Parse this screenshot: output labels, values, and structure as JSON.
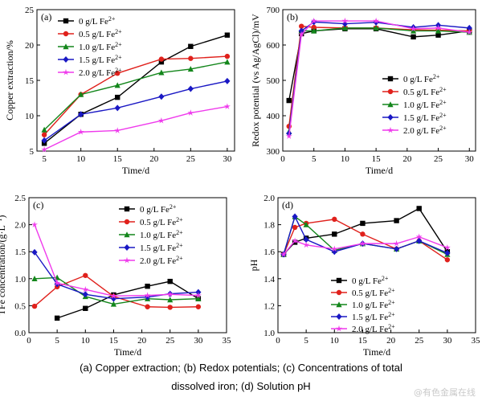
{
  "caption_line1": "(a) Copper extraction; (b) Redox potentials; (c) Concentrations of total",
  "caption_line2": "dissolved iron; (d) Solution pH",
  "watermark": "@有色金属在线",
  "colors": {
    "0 g/L": "#000000",
    "0.5 g/L": "#e0211c",
    "1.0 g/L": "#13861b",
    "1.5 g/L": "#1a18c4",
    "2.0 g/L": "#ef3aec"
  },
  "chart_data": [
    {
      "panel": "(a)",
      "type": "line",
      "xlabel": "Time/d",
      "ylabel": "Copper extraction/%",
      "xlim": [
        4,
        31
      ],
      "ylim": [
        5,
        25
      ],
      "xticks": [
        5,
        10,
        15,
        20,
        25,
        30
      ],
      "yticks": [
        5,
        10,
        15,
        20,
        25
      ],
      "legend_position": "top-left",
      "series": [
        {
          "name": "0 g/L Fe",
          "marker": "square",
          "x": [
            5,
            10,
            15,
            21,
            25,
            30
          ],
          "y": [
            6.1,
            10.2,
            12.6,
            17.6,
            19.8,
            21.4
          ]
        },
        {
          "name": "0.5 g/L Fe",
          "marker": "circle",
          "x": [
            5,
            10,
            15,
            21,
            25,
            30
          ],
          "y": [
            7.3,
            13.0,
            16.0,
            18.0,
            18.1,
            18.4
          ]
        },
        {
          "name": "1.0 g/L Fe",
          "marker": "triangle",
          "x": [
            5,
            10,
            15,
            21,
            25,
            30
          ],
          "y": [
            8.0,
            13.0,
            14.3,
            16.1,
            16.6,
            17.6
          ]
        },
        {
          "name": "1.5 g/L Fe",
          "marker": "diamond",
          "x": [
            5,
            10,
            15,
            21,
            25,
            30
          ],
          "y": [
            6.5,
            10.2,
            11.1,
            12.7,
            13.8,
            14.9
          ]
        },
        {
          "name": "2.0 g/L Fe",
          "marker": "star",
          "x": [
            5,
            10,
            15,
            21,
            25,
            30
          ],
          "y": [
            5.2,
            7.7,
            7.9,
            9.3,
            10.4,
            11.3
          ]
        }
      ]
    },
    {
      "panel": "(b)",
      "type": "line",
      "xlabel": "Time/d",
      "ylabel": "Redox potential (vs Ag/AgCl)/mV",
      "xlim": [
        0,
        31
      ],
      "ylim": [
        300,
        700
      ],
      "xticks": [
        0,
        5,
        10,
        15,
        20,
        25,
        30
      ],
      "yticks": [
        300,
        400,
        500,
        600,
        700
      ],
      "legend_position": "center-right",
      "series": [
        {
          "name": "0 g/L Fe",
          "marker": "square",
          "x": [
            1,
            3,
            5,
            10,
            15,
            21,
            25,
            30
          ],
          "y": [
            443,
            632,
            640,
            646,
            646,
            623,
            628,
            640
          ]
        },
        {
          "name": "0.5 g/L Fe",
          "marker": "circle",
          "x": [
            1,
            3,
            5,
            10,
            15,
            21,
            25,
            30
          ],
          "y": [
            370,
            653,
            650,
            648,
            648,
            643,
            642,
            640
          ]
        },
        {
          "name": "1.0 g/L Fe",
          "marker": "triangle",
          "x": [
            1,
            3,
            5,
            10,
            15,
            21,
            25,
            30
          ],
          "y": [
            355,
            640,
            640,
            648,
            648,
            640,
            640,
            636
          ]
        },
        {
          "name": "1.5 g/L Fe",
          "marker": "diamond",
          "x": [
            1,
            3,
            5,
            10,
            15,
            21,
            25,
            30
          ],
          "y": [
            350,
            640,
            665,
            660,
            664,
            650,
            656,
            648
          ]
        },
        {
          "name": "2.0 g/L Fe",
          "marker": "star",
          "x": [
            1,
            3,
            5,
            10,
            15,
            21,
            25,
            30
          ],
          "y": [
            342,
            630,
            668,
            668,
            668,
            646,
            648,
            636
          ]
        }
      ]
    },
    {
      "panel": "(c)",
      "type": "line",
      "xlabel": "Time/d",
      "ylabel": "TFe concentration/(g·L",
      "ylabel_sup": "−1",
      "ylabel_end": ")",
      "xlim": [
        0,
        35
      ],
      "ylim": [
        0,
        2.5
      ],
      "xticks": [
        0,
        5,
        10,
        15,
        20,
        25,
        30,
        35
      ],
      "yticks": [
        0.0,
        0.5,
        1.0,
        1.5,
        2.0,
        2.5
      ],
      "legend_position": "top-right",
      "series": [
        {
          "name": "0 g/L Fe",
          "marker": "square",
          "x": [
            5,
            10,
            15,
            21,
            25,
            30
          ],
          "y": [
            0.27,
            0.45,
            0.7,
            0.86,
            0.95,
            0.63
          ]
        },
        {
          "name": "0.5 g/L Fe",
          "marker": "circle",
          "x": [
            1,
            5,
            10,
            15,
            21,
            25,
            30
          ],
          "y": [
            0.49,
            0.85,
            1.06,
            0.67,
            0.48,
            0.47,
            0.48
          ]
        },
        {
          "name": "1.0 g/L Fe",
          "marker": "triangle",
          "x": [
            1,
            5,
            10,
            15,
            21,
            25,
            30
          ],
          "y": [
            1.0,
            1.02,
            0.67,
            0.53,
            0.63,
            0.61,
            0.63
          ]
        },
        {
          "name": "1.5 g/L Fe",
          "marker": "diamond",
          "x": [
            1,
            5,
            10,
            15,
            21,
            25,
            30
          ],
          "y": [
            1.49,
            0.9,
            0.71,
            0.63,
            0.66,
            0.72,
            0.75
          ]
        },
        {
          "name": "2.0 g/L Fe",
          "marker": "star",
          "x": [
            1,
            5,
            10,
            15,
            21,
            25,
            30
          ],
          "y": [
            2.0,
            0.92,
            0.8,
            0.68,
            0.69,
            0.71,
            0.69
          ]
        }
      ]
    },
    {
      "panel": "(d)",
      "type": "line",
      "xlabel": "Time/d",
      "ylabel": "pH",
      "xlim": [
        0,
        35
      ],
      "ylim": [
        1.0,
        2.0
      ],
      "xticks": [
        0,
        5,
        10,
        15,
        20,
        25,
        30,
        35
      ],
      "yticks": [
        1.0,
        1.2,
        1.4,
        1.6,
        1.8,
        2.0
      ],
      "legend_position": "bottom-right",
      "series": [
        {
          "name": "0 g/L Fe",
          "marker": "square",
          "x": [
            1,
            3,
            5,
            10,
            15,
            21,
            25,
            30
          ],
          "y": [
            1.58,
            1.67,
            1.7,
            1.73,
            1.81,
            1.83,
            1.92,
            1.6
          ]
        },
        {
          "name": "0.5 g/L Fe",
          "marker": "circle",
          "x": [
            1,
            3,
            5,
            10,
            15,
            21,
            25,
            30
          ],
          "y": [
            1.58,
            1.78,
            1.81,
            1.84,
            1.73,
            1.62,
            1.68,
            1.54
          ]
        },
        {
          "name": "1.0 g/L Fe",
          "marker": "triangle",
          "x": [
            1,
            3,
            5,
            10,
            15,
            21,
            25,
            30
          ],
          "y": [
            1.58,
            1.86,
            1.8,
            1.61,
            1.66,
            1.62,
            1.68,
            1.58
          ]
        },
        {
          "name": "1.5 g/L Fe",
          "marker": "diamond",
          "x": [
            1,
            3,
            5,
            10,
            15,
            21,
            25,
            30
          ],
          "y": [
            1.58,
            1.86,
            1.69,
            1.6,
            1.66,
            1.62,
            1.68,
            1.59
          ]
        },
        {
          "name": "2.0 g/L Fe",
          "marker": "star",
          "x": [
            1,
            3,
            5,
            10,
            15,
            21,
            25,
            30
          ],
          "y": [
            1.58,
            1.68,
            1.65,
            1.62,
            1.66,
            1.66,
            1.71,
            1.63
          ]
        }
      ]
    }
  ]
}
